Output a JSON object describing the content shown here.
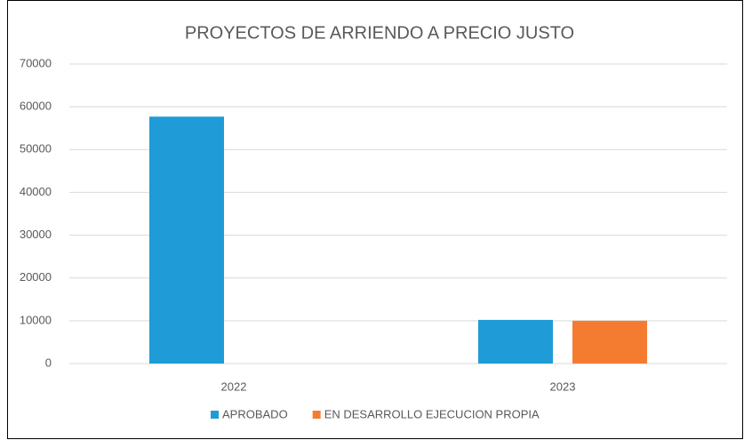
{
  "chart_data": {
    "type": "bar",
    "title": "PROYECTOS DE ARRIENDO A PRECIO JUSTO",
    "categories": [
      "2022",
      "2023"
    ],
    "series": [
      {
        "name": "APROBADO",
        "color": "#1f9bd7",
        "values": [
          57700,
          10200
        ]
      },
      {
        "name": "EN DESARROLLO EJECUCION PROPIA",
        "color": "#f47c30",
        "values": [
          null,
          10000
        ]
      }
    ],
    "ylim": [
      0,
      70000
    ],
    "yticks": [
      0,
      10000,
      20000,
      30000,
      40000,
      50000,
      60000,
      70000
    ],
    "grid": true,
    "legend": "bottom"
  }
}
